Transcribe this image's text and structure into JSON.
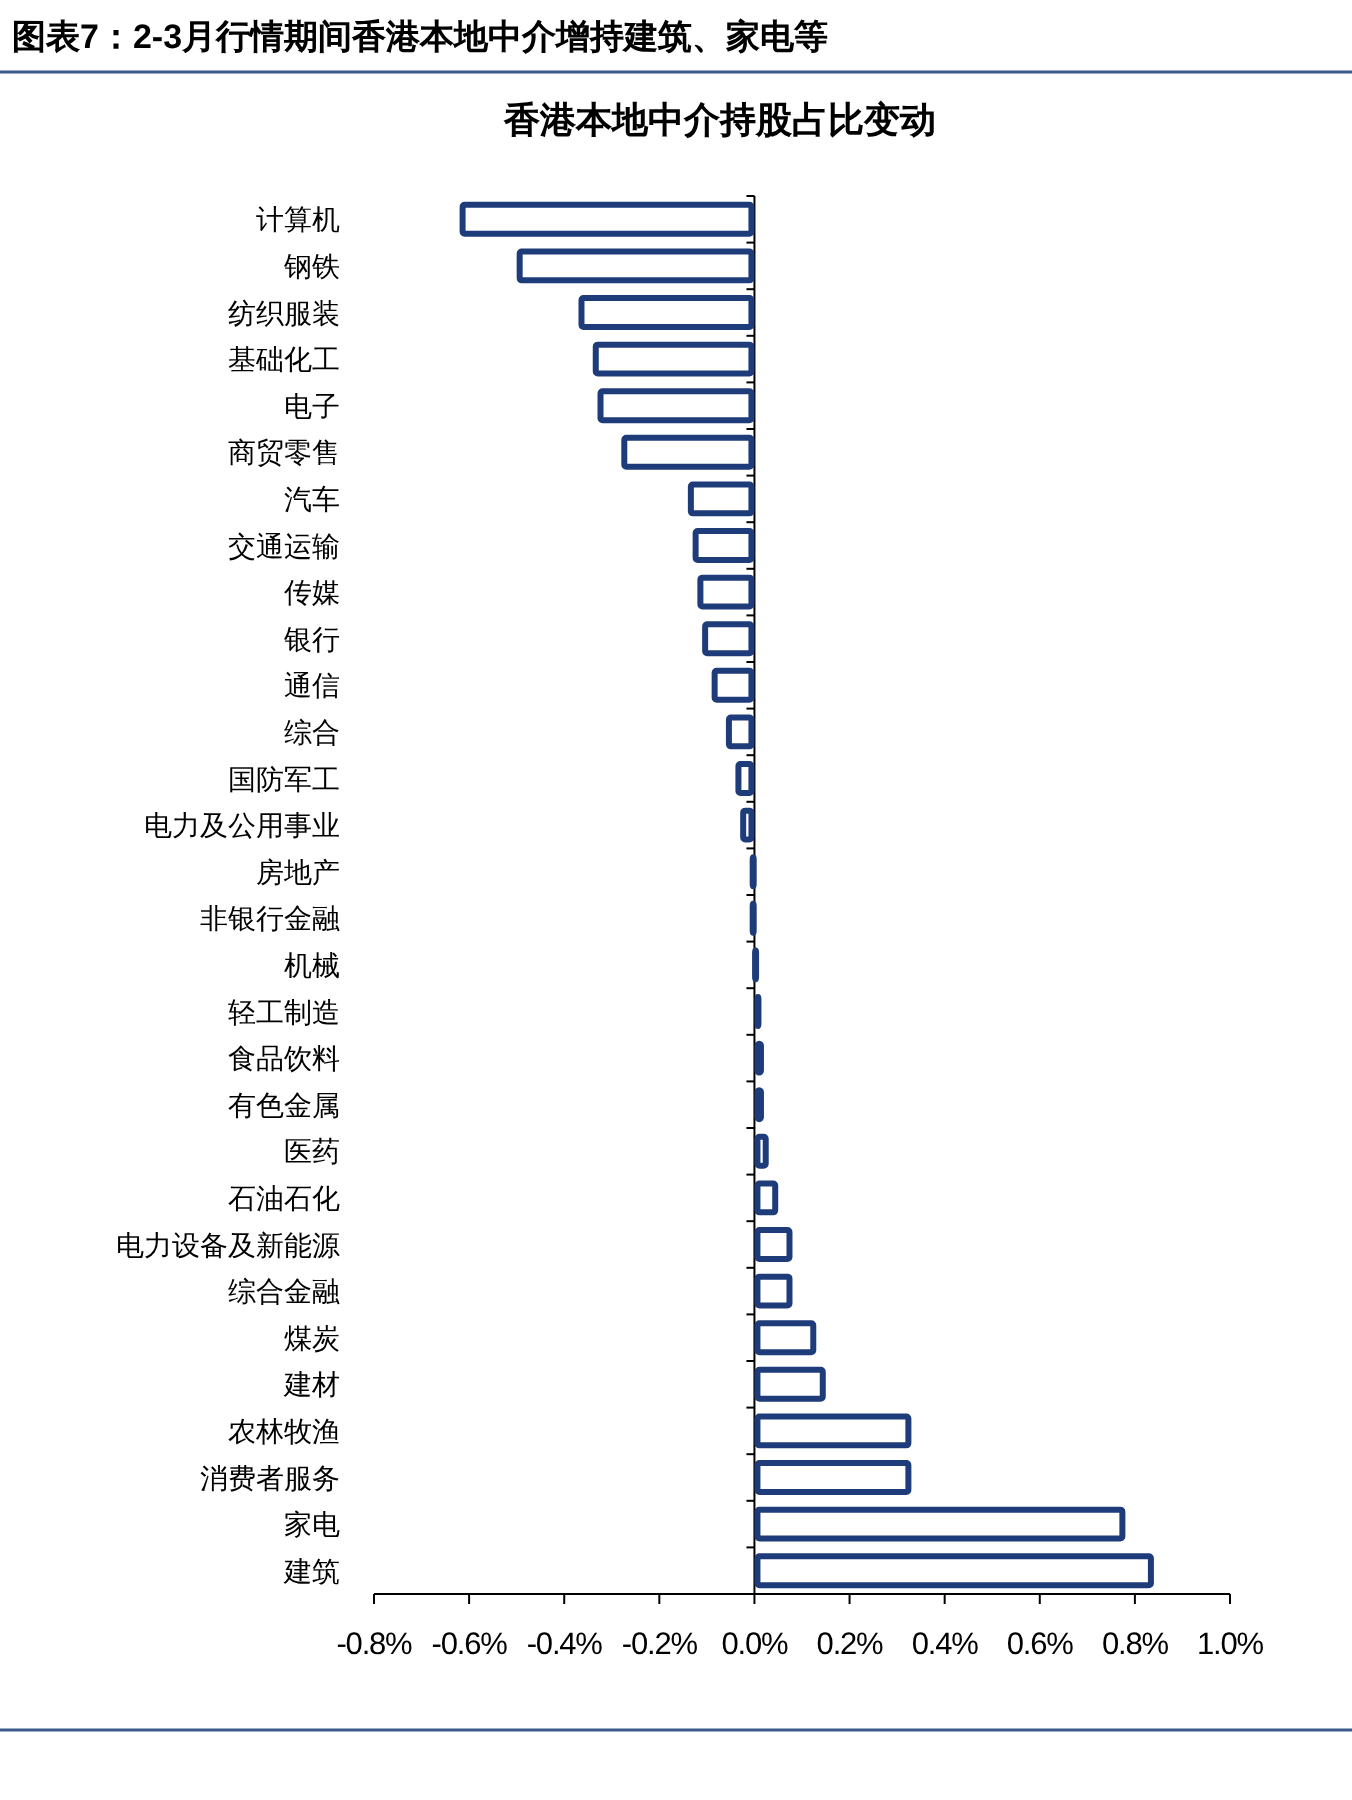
{
  "chart_data": {
    "type": "bar",
    "orientation": "horizontal",
    "title": "图表7：2-3月行情期间香港本地中介增持建筑、家电等",
    "subtitle": "香港本地中介持股占比变动",
    "categories": [
      "计算机",
      "钢铁",
      "纺织服装",
      "基础化工",
      "电子",
      "商贸零售",
      "汽车",
      "交通运输",
      "传媒",
      "银行",
      "通信",
      "综合",
      "国防军工",
      "电力及公用事业",
      "房地产",
      "非银行金融",
      "机械",
      "轻工制造",
      "食品饮料",
      "有色金属",
      "医药",
      "石油石化",
      "电力设备及新能源",
      "综合金融",
      "煤炭",
      "建材",
      "农林牧渔",
      "消费者服务",
      "家电",
      "建筑"
    ],
    "values": [
      -0.62,
      -0.5,
      -0.37,
      -0.34,
      -0.33,
      -0.28,
      -0.14,
      -0.13,
      -0.12,
      -0.11,
      -0.09,
      -0.06,
      -0.04,
      -0.03,
      -0.01,
      -0.01,
      -0.005,
      0.01,
      0.02,
      0.02,
      0.03,
      0.05,
      0.08,
      0.08,
      0.13,
      0.15,
      0.33,
      0.33,
      0.78,
      0.84
    ],
    "color": "#1f3c7a",
    "xlim": [
      -0.8,
      1.0
    ],
    "xticks": [
      {
        "value": -0.8,
        "label": "-0.8%"
      },
      {
        "value": -0.6,
        "label": "-0.6%"
      },
      {
        "value": -0.4,
        "label": "-0.4%"
      },
      {
        "value": -0.2,
        "label": "-0.2%"
      },
      {
        "value": 0,
        "label": "0.0%"
      },
      {
        "value": 0.2,
        "label": "0.2%"
      },
      {
        "value": 0.4,
        "label": "0.4%"
      },
      {
        "value": 0.6,
        "label": "0.6%"
      },
      {
        "value": 0.8,
        "label": "0.8%"
      },
      {
        "value": 1.0,
        "label": "1.0%"
      }
    ]
  }
}
